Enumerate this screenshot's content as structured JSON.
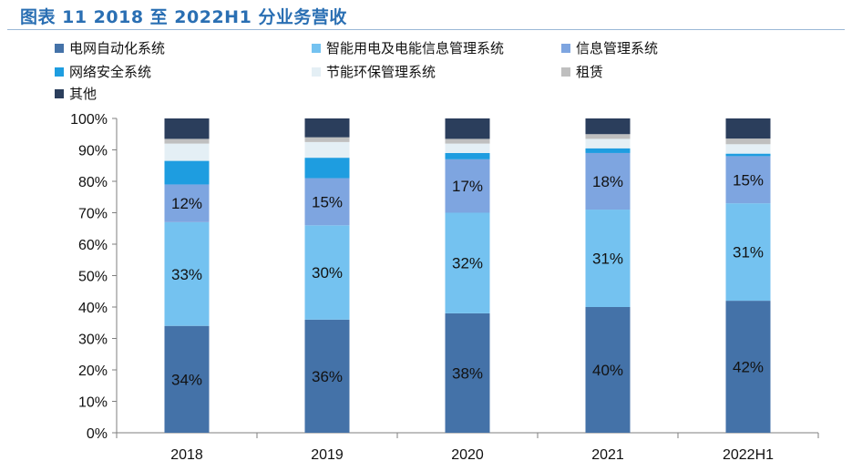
{
  "figure_title": "图表 11 2018 至 2022H1 分业务营收",
  "chart_data": {
    "type": "bar",
    "stacked": true,
    "title": "图表 11 2018 至 2022H1 分业务营收",
    "categories": [
      "2018",
      "2019",
      "2020",
      "2021",
      "2022H1"
    ],
    "ylim": [
      0,
      100
    ],
    "yticks": [
      "0%",
      "10%",
      "20%",
      "30%",
      "40%",
      "50%",
      "60%",
      "70%",
      "80%",
      "90%",
      "100%"
    ],
    "series": [
      {
        "name": "电网自动化系统",
        "color": "#4472a8",
        "values": [
          34,
          36,
          38,
          40,
          42
        ],
        "labels": [
          "34%",
          "36%",
          "38%",
          "40%",
          "42%"
        ]
      },
      {
        "name": "智能用电及电能信息管理系统",
        "color": "#74c2f0",
        "values": [
          33,
          30,
          32,
          31,
          31
        ],
        "labels": [
          "33%",
          "30%",
          "32%",
          "31%",
          "31%"
        ]
      },
      {
        "name": "信息管理系统",
        "color": "#7ea5e0",
        "values": [
          12,
          15,
          17,
          18,
          15
        ],
        "labels": [
          "12%",
          "15%",
          "17%",
          "18%",
          "15%"
        ]
      },
      {
        "name": "网络安全系统",
        "color": "#1e9de0",
        "values": [
          7.5,
          6.5,
          2,
          1.5,
          0.8
        ],
        "labels": [
          "",
          "",
          "",
          "",
          ""
        ]
      },
      {
        "name": "节能环保管理系统",
        "color": "#e4eff5",
        "values": [
          5.5,
          5,
          3,
          3,
          3
        ],
        "labels": [
          "",
          "",
          "",
          "",
          ""
        ]
      },
      {
        "name": "租赁",
        "color": "#bfbfbf",
        "values": [
          1.5,
          1.5,
          1.5,
          1.5,
          1.8
        ],
        "labels": [
          "",
          "",
          "",
          "",
          ""
        ]
      },
      {
        "name": "其他",
        "color": "#2b3e5c",
        "values": [
          6.5,
          6,
          6.5,
          5,
          6.4
        ],
        "labels": [
          "",
          "",
          "",
          "",
          ""
        ]
      }
    ]
  }
}
